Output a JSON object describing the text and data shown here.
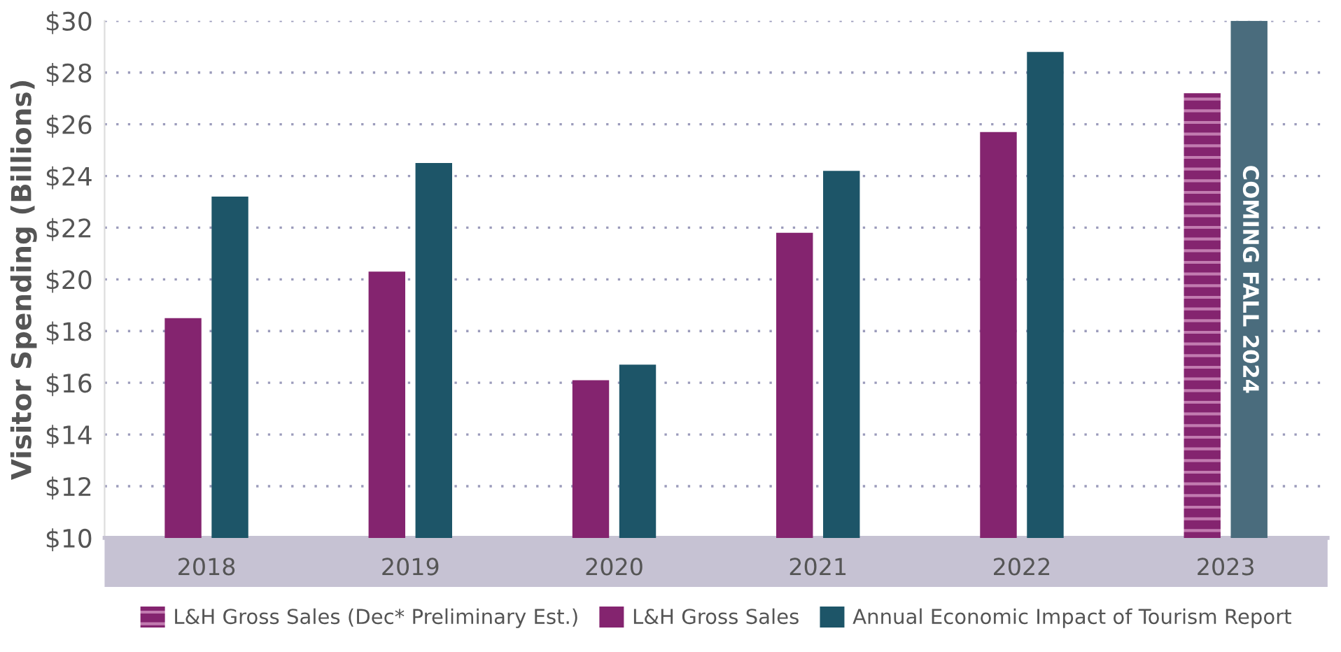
{
  "chart_data": {
    "type": "bar",
    "ylabel": "Visitor Spending (Billions)",
    "categories": [
      "2018",
      "2019",
      "2020",
      "2021",
      "2022",
      "2023"
    ],
    "series": [
      {
        "name": "L&H Gross Sales (Dec* Preliminary Est.)",
        "color": "#84246f",
        "values": [
          null,
          null,
          null,
          null,
          null,
          27.2
        ]
      },
      {
        "name": "L&H Gross Sales",
        "color": "#84246f",
        "values": [
          18.5,
          20.3,
          16.1,
          21.8,
          25.7,
          null
        ]
      },
      {
        "name": "Annual Economic Impact of Tourism Report",
        "color": "#1d5568",
        "values": [
          23.2,
          24.5,
          16.7,
          24.2,
          28.8,
          null
        ]
      },
      {
        "color": "#4a6c7d",
        "values": [
          null,
          null,
          null,
          null,
          null,
          30
        ]
      }
    ],
    "annotations": [
      "COMING FALL 2024"
    ],
    "ylim": [
      10,
      30
    ],
    "yticks": [
      {
        "value": 10,
        "label": "$10"
      },
      {
        "value": 12,
        "label": "$12"
      },
      {
        "value": 14,
        "label": "$14"
      },
      {
        "value": 16,
        "label": "$16"
      },
      {
        "value": 18,
        "label": "$18"
      },
      {
        "value": 20,
        "label": "$20"
      },
      {
        "value": 22,
        "label": "$22"
      },
      {
        "value": 24,
        "label": "$24"
      },
      {
        "value": 26,
        "label": "$26"
      },
      {
        "value": 28,
        "label": "$28"
      },
      {
        "value": 30,
        "label": "$30"
      }
    ],
    "grid": "y",
    "legend": "bottom"
  }
}
